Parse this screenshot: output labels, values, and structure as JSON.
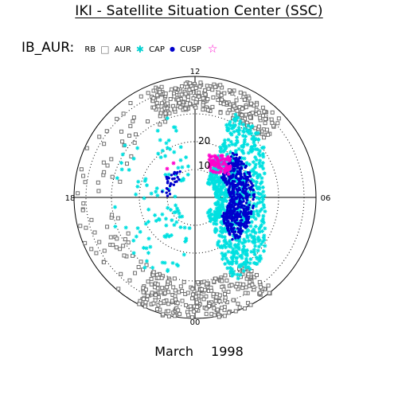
{
  "header": {
    "title": "IKI - Satellite Situation Center (SSC)"
  },
  "legend": {
    "label": "IB_AUR:",
    "items": [
      {
        "name": "RB",
        "symbol": "",
        "color": "#000000"
      },
      {
        "name": "AUR",
        "symbol": "□",
        "color": "#6e6e6e"
      },
      {
        "name": "CAP",
        "symbol": "✱",
        "color": "#00e0e0"
      },
      {
        "name": "CUSP",
        "symbol": "●",
        "color": "#0000cc"
      },
      {
        "name": "",
        "symbol": "☆",
        "color": "#ff00cc"
      }
    ]
  },
  "footer": {
    "month": "March",
    "year": "1998"
  },
  "chart_data": {
    "type": "scatter",
    "projection": "polar (magnetic local time / invariant latitude)",
    "mlt_labels": {
      "top": "12",
      "left": "18",
      "right": "06",
      "bottom": "00"
    },
    "ring_labels": [
      "20",
      "10"
    ],
    "grid": true,
    "series": [
      {
        "name": "AUR",
        "color": "#6e6e6e",
        "marker": "open-square"
      },
      {
        "name": "CAP",
        "color": "#00e0e0",
        "marker": "asterisk"
      },
      {
        "name": "CUSP",
        "color": "#0000cc",
        "marker": "dot"
      },
      {
        "name": "",
        "color": "#ff00cc",
        "marker": "asterisk"
      }
    ]
  }
}
